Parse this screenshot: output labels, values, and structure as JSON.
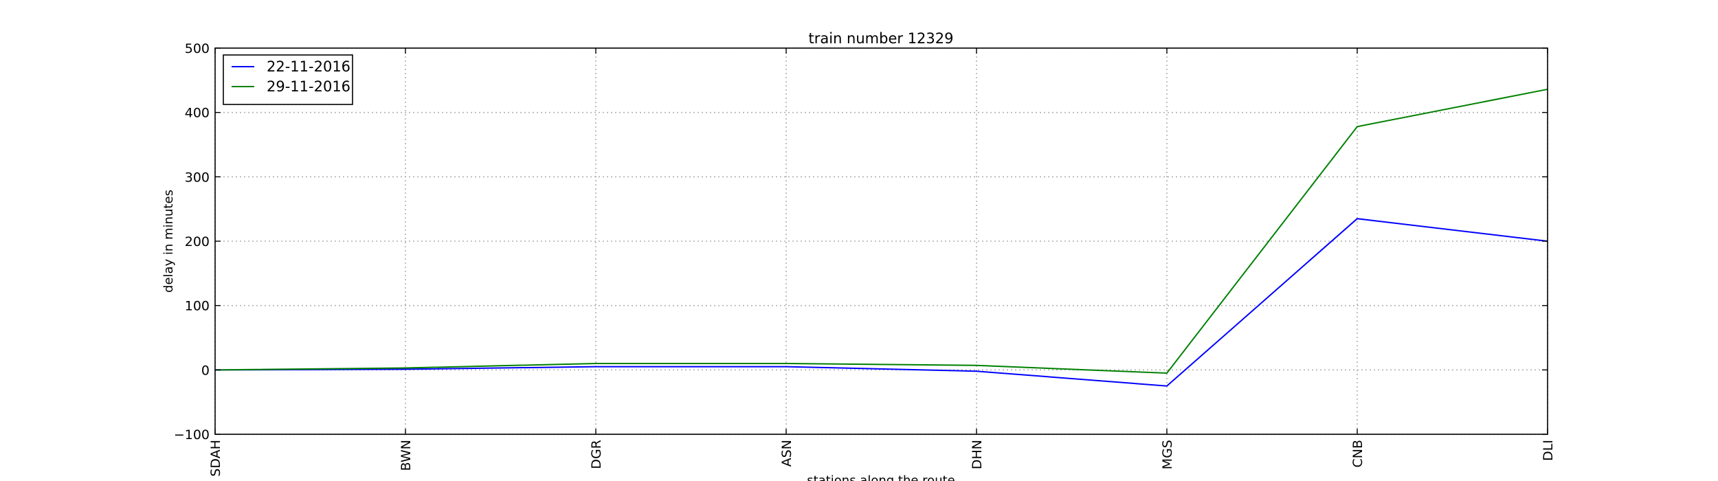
{
  "chart_data": {
    "type": "line",
    "title": "train number 12329",
    "xlabel": "stations along the route",
    "ylabel": "delay in minutes",
    "categories": [
      "SDAH",
      "BWN",
      "DGR",
      "ASN",
      "DHN",
      "MGS",
      "CNB",
      "DLI"
    ],
    "ylim": [
      -100,
      500
    ],
    "yticks": [
      -100,
      0,
      100,
      200,
      300,
      400,
      500
    ],
    "grid": true,
    "legend_position": "top-left",
    "series": [
      {
        "name": "22-11-2016",
        "color": "#0000ff",
        "values": [
          0,
          1,
          5,
          5,
          -2,
          -25,
          235,
          200
        ]
      },
      {
        "name": "29-11-2016",
        "color": "#008000",
        "values": [
          0,
          3,
          10,
          10,
          7,
          -5,
          378,
          436
        ]
      }
    ]
  }
}
